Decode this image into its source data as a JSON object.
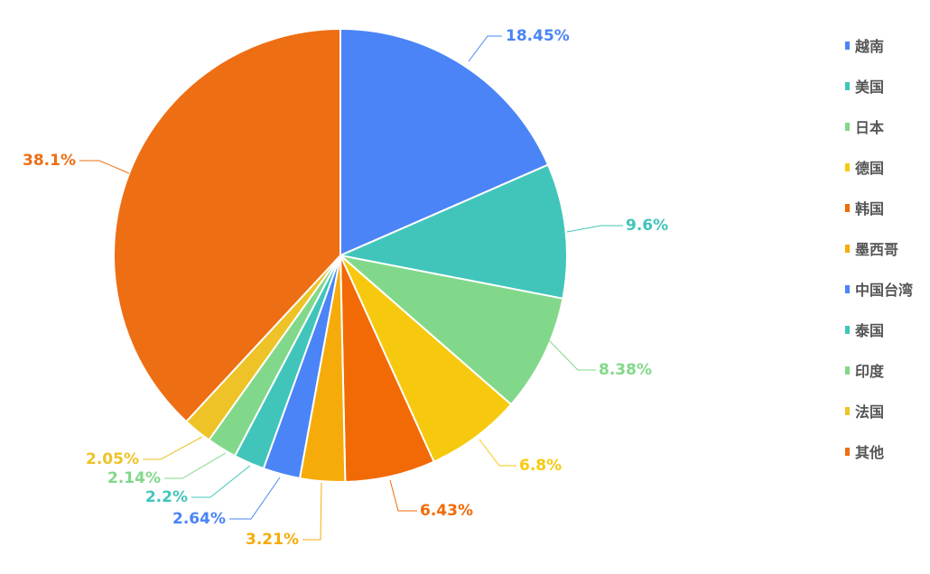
{
  "chart_data": {
    "type": "pie",
    "title": "",
    "slices": [
      {
        "name": "越南",
        "value": 18.45,
        "label": "18.45%",
        "color": "#4A84F7"
      },
      {
        "name": "美国",
        "value": 9.6,
        "label": "9.6%",
        "color": "#41C5BA"
      },
      {
        "name": "日本",
        "value": 8.38,
        "label": "8.38%",
        "color": "#82D88A"
      },
      {
        "name": "德国",
        "value": 6.8,
        "label": "6.8%",
        "color": "#F6C90E"
      },
      {
        "name": "韩国",
        "value": 6.43,
        "label": "6.43%",
        "color": "#F26A06"
      },
      {
        "name": "墨西哥",
        "value": 3.21,
        "label": "3.21%",
        "color": "#F5AC0B"
      },
      {
        "name": "中国台湾",
        "value": 2.64,
        "label": "2.64%",
        "color": "#4A84F7"
      },
      {
        "name": "泰国",
        "value": 2.2,
        "label": "2.2%",
        "color": "#41C5BA"
      },
      {
        "name": "印度",
        "value": 2.14,
        "label": "2.14%",
        "color": "#82D88A"
      },
      {
        "name": "法国",
        "value": 2.05,
        "label": "2.05%",
        "color": "#EDC327"
      },
      {
        "name": "其他",
        "value": 38.1,
        "label": "38.1%",
        "color": "#EE6E14"
      }
    ],
    "legend_position": "right"
  }
}
